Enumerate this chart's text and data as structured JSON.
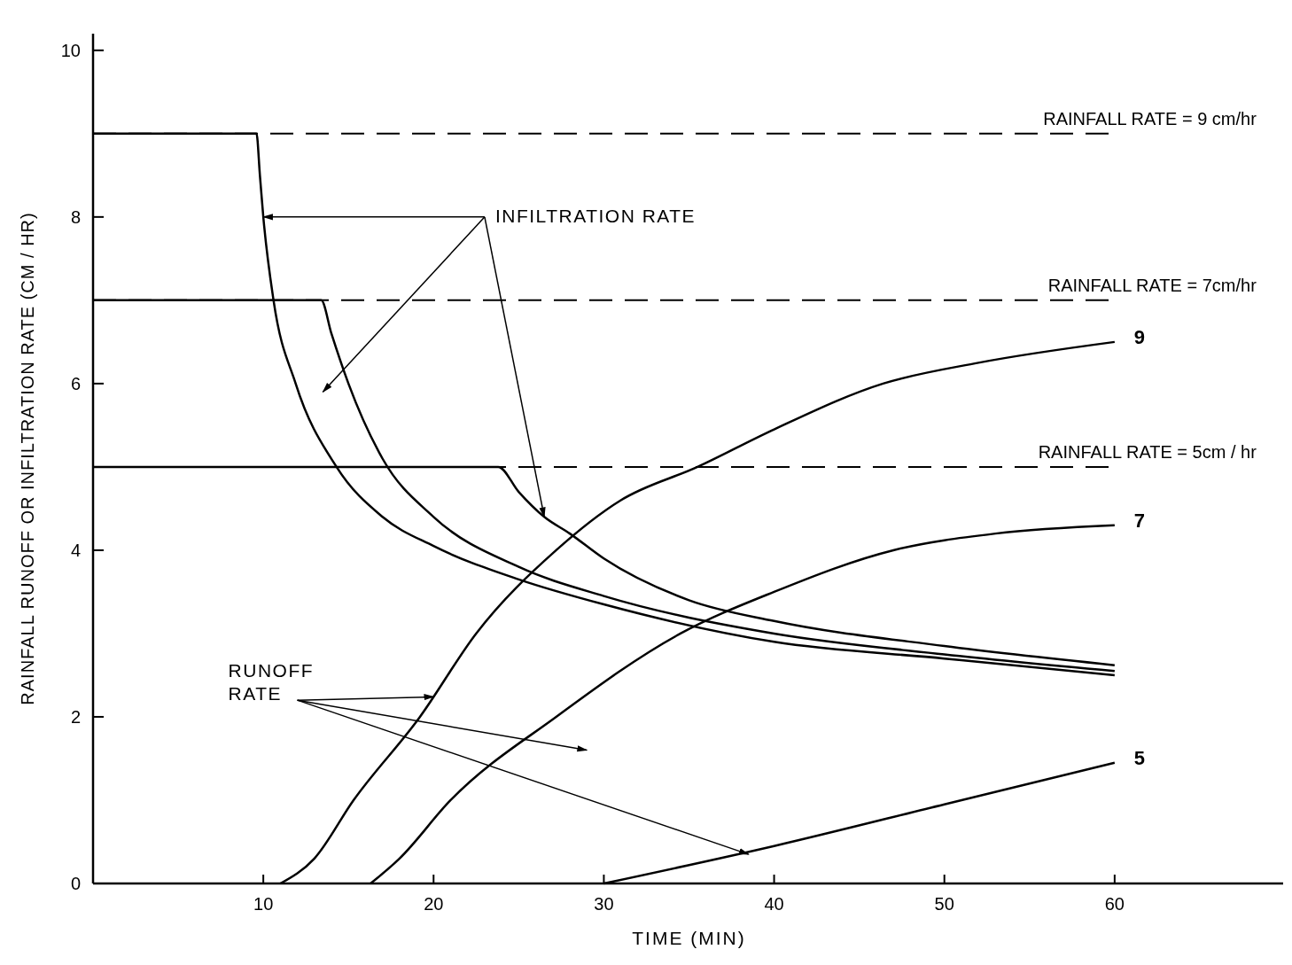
{
  "chart_data": {
    "type": "line",
    "xlabel": "TIME (MIN)",
    "ylabel": "RAINFALL RUNOFF OR INFILTRATION RATE (CM / HR)",
    "xlim": [
      0,
      70
    ],
    "ylim": [
      0,
      10.2
    ],
    "xticks": [
      10,
      20,
      30,
      40,
      50,
      60
    ],
    "yticks": [
      0,
      2,
      4,
      6,
      8,
      10
    ],
    "grid": false,
    "marker": "none",
    "line_style": "solid",
    "series": [
      {
        "color": "#000000",
        "x": [
          0,
          9.6,
          9.8,
          10,
          10.6,
          11.9,
          14.3,
          17,
          20,
          25,
          30,
          40,
          50,
          60
        ],
        "values": [
          9,
          9,
          8.5,
          8,
          7,
          6,
          5,
          4.4,
          4.05,
          3.65,
          3.35,
          2.9,
          2.7,
          2.5
        ]
      },
      {
        "color": "#000000",
        "x": [
          0,
          13.4,
          14,
          15,
          17,
          20,
          25,
          30,
          40,
          50,
          60
        ],
        "values": [
          7,
          7,
          6.6,
          6,
          5.1,
          4.4,
          3.8,
          3.45,
          3,
          2.75,
          2.55
        ]
      },
      {
        "color": "#000000",
        "x": [
          0,
          23.8,
          25,
          26.5,
          28,
          30,
          35,
          40,
          50,
          60
        ],
        "values": [
          5,
          5,
          4.7,
          4.4,
          4.2,
          3.9,
          3.4,
          3.15,
          2.85,
          2.62
        ]
      },
      {
        "name": "9",
        "color": "#000000",
        "x": [
          11,
          13,
          15.3,
          19.2,
          22.5,
          27.2,
          31,
          35.5,
          40,
          46.4,
          52,
          60
        ],
        "values": [
          0,
          0.3,
          1,
          2,
          3,
          4,
          4.6,
          5,
          5.45,
          6,
          6.25,
          6.5
        ]
      },
      {
        "name": "7",
        "color": "#000000",
        "x": [
          16.3,
          18,
          21,
          27.2,
          34.5,
          40,
          47,
          53,
          60
        ],
        "values": [
          0,
          0.3,
          1,
          2,
          3,
          3.5,
          4,
          4.2,
          4.3
        ]
      },
      {
        "name": "5",
        "color": "#000000",
        "x": [
          30,
          40,
          50,
          60
        ],
        "values": [
          0,
          0.45,
          0.95,
          1.45
        ]
      }
    ],
    "ref_lines": [
      {
        "axis": "y",
        "value": 9,
        "label": "RAINFALL RATE = 9 cm/hr",
        "line_style": "dashed"
      },
      {
        "axis": "y",
        "value": 7,
        "label": "RAINFALL RATE = 7cm/hr",
        "line_style": "dashed"
      },
      {
        "axis": "y",
        "value": 5,
        "label": "RAINFALL RATE = 5cm / hr",
        "line_style": "dashed"
      }
    ],
    "annotations": [
      {
        "text": "INFILTRATION RATE",
        "x": 10,
        "y": 8
      },
      {
        "text": "RUNOFF RATE",
        "x": 20,
        "y": 2.24
      }
    ]
  }
}
